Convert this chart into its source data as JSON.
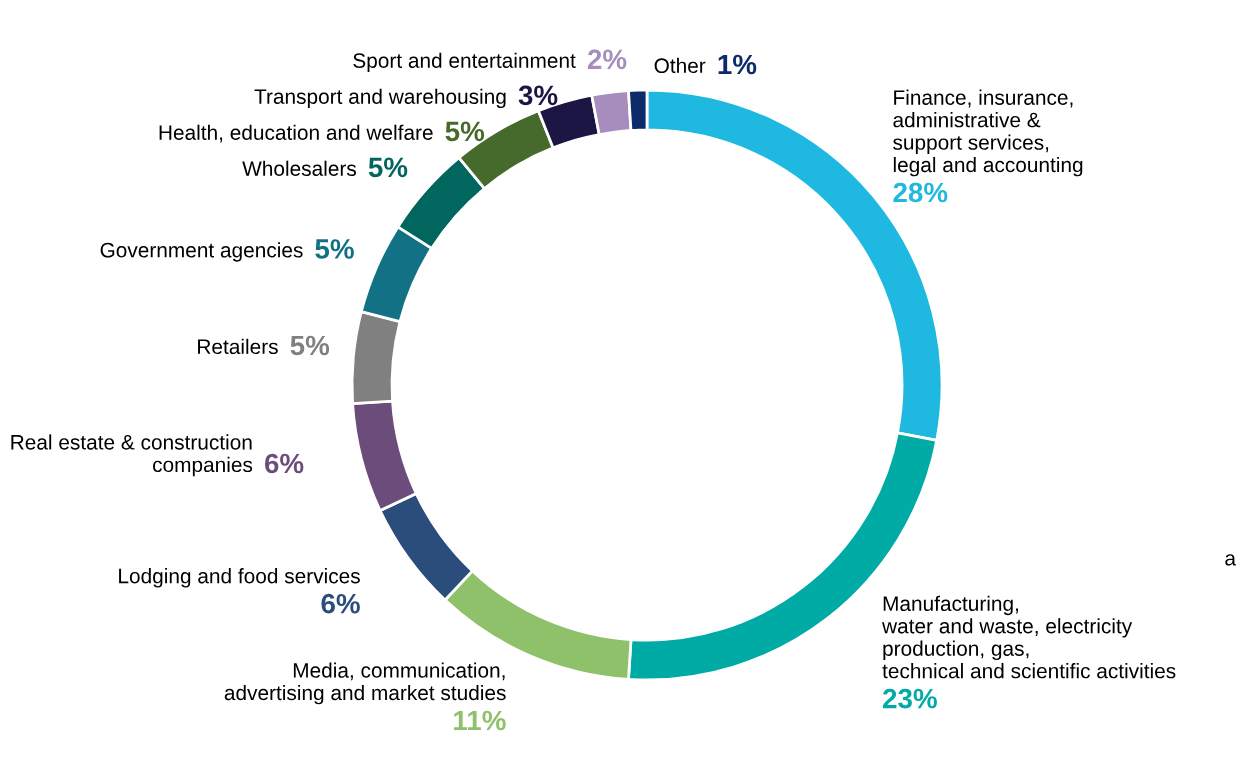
{
  "chart_data": {
    "type": "donut",
    "categories": [
      "Finance, insurance,\nadministrative &\nsupport services,\nlegal and accounting",
      "Manufacturing,\nwater and waste, electricity\nproduction, gas,\ntechnical and scientific activities",
      "Media, communication,\nadvertising and market studies",
      "Lodging and food services",
      "Real estate & construction\ncompanies",
      "Retailers",
      "Government agencies",
      "Wholesalers",
      "Health, education and welfare",
      "Transport and warehousing",
      "Sport and entertainment",
      "Other"
    ],
    "values": [
      28,
      23,
      11,
      6,
      6,
      5,
      5,
      5,
      5,
      3,
      2,
      1
    ],
    "value_labels": [
      "28%",
      "23%",
      "11%",
      "6%",
      "6%",
      "5%",
      "5%",
      "5%",
      "5%",
      "3%",
      "2%",
      "1%"
    ],
    "colors": [
      "#1fb8e0",
      "#00aba6",
      "#8fc06a",
      "#2a4d7c",
      "#6b4c7a",
      "#808080",
      "#137186",
      "#00665e",
      "#466a2c",
      "#1c1645",
      "#a68dbd",
      "#0d2a6b"
    ],
    "annotations": [
      "a"
    ]
  }
}
